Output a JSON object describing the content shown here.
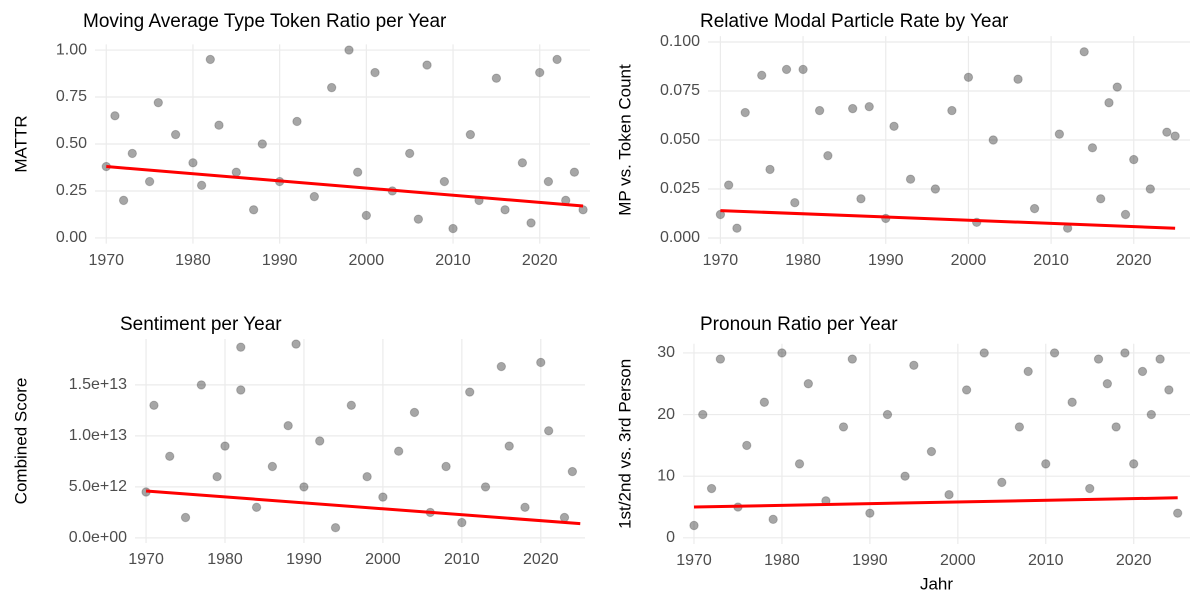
{
  "chart_data": [
    {
      "type": "scatter",
      "title": "Moving Average Type Token Ratio per Year",
      "y_label": "MATTR",
      "xlim": [
        1968.7,
        2025.8
      ],
      "ylim": [
        -0.03,
        1.03
      ],
      "xticks": [
        1970,
        1980,
        1990,
        2000,
        2010,
        2020
      ],
      "yticks": [
        {
          "value": 0,
          "label": "0.00"
        },
        0.25,
        {
          "value": 0.5,
          "label": "0.50"
        },
        0.75,
        {
          "value": 1,
          "label": "1.00"
        }
      ],
      "grid": true,
      "color": "#000000",
      "x": [
        1970,
        1971,
        1972,
        1973,
        1975,
        1976,
        1978,
        1980,
        1981,
        1982,
        1983,
        1985,
        1987,
        1988,
        1990,
        1992,
        1994,
        1996,
        1998,
        1999,
        2000,
        2001,
        2003,
        2005,
        2006,
        2007,
        2009,
        2010,
        2012,
        2013,
        2015,
        2016,
        2018,
        2019,
        2020,
        2021,
        2022,
        2023,
        2024,
        2025
      ],
      "values": [
        0.38,
        0.65,
        0.2,
        0.45,
        0.3,
        0.72,
        0.55,
        0.4,
        0.28,
        0.95,
        0.6,
        0.35,
        0.15,
        0.5,
        0.3,
        0.62,
        0.22,
        0.8,
        1.0,
        0.35,
        0.12,
        0.88,
        0.25,
        0.45,
        0.1,
        0.92,
        0.3,
        0.05,
        0.55,
        0.2,
        0.85,
        0.15,
        0.4,
        0.08,
        0.88,
        0.3,
        0.95,
        0.2,
        0.35,
        0.15
      ],
      "trend": {
        "x": [
          1970,
          2025
        ],
        "values": [
          0.38,
          0.17
        ],
        "color": "#ff0000"
      }
    },
    {
      "type": "scatter",
      "title": "Relative Modal Particle Rate by Year",
      "y_label": "MP vs. Token Count",
      "xlim": [
        1968.5,
        2026.8
      ],
      "ylim": [
        -0.003,
        0.103
      ],
      "xticks": [
        1970,
        1980,
        1990,
        2000,
        2010,
        2020
      ],
      "yticks": [
        {
          "value": 0,
          "label": "0.000"
        },
        0.025,
        {
          "value": 0.05,
          "label": "0.050"
        },
        0.075,
        {
          "value": 0.1,
          "label": "0.100"
        }
      ],
      "grid": true,
      "color": "#000000",
      "x": [
        1970,
        1971,
        1972,
        1973,
        1975,
        1976,
        1978,
        1979,
        1980,
        1982,
        1983,
        1986,
        1987,
        1988,
        1990,
        1991,
        1993,
        1996,
        1998,
        2000,
        2001,
        2003,
        2006,
        2008,
        2011,
        2012,
        2014,
        2015,
        2016,
        2017,
        2018,
        2019,
        2020,
        2022,
        2024,
        2025
      ],
      "values": [
        0.012,
        0.027,
        0.005,
        0.064,
        0.083,
        0.035,
        0.086,
        0.018,
        0.086,
        0.065,
        0.042,
        0.066,
        0.02,
        0.067,
        0.01,
        0.057,
        0.03,
        0.025,
        0.065,
        0.082,
        0.008,
        0.05,
        0.081,
        0.015,
        0.053,
        0.005,
        0.095,
        0.046,
        0.02,
        0.069,
        0.077,
        0.012,
        0.04,
        0.025,
        0.054,
        0.052
      ],
      "trend": {
        "x": [
          1970,
          2025
        ],
        "values": [
          0.014,
          0.005
        ],
        "color": "#ff0000"
      }
    },
    {
      "type": "scatter",
      "title": "Sentiment per Year",
      "y_label": "Combined Score",
      "xlim": [
        1968.6,
        2025.6
      ],
      "ylim": [
        -500000000000,
        19500000000000
      ],
      "xticks": [
        1970,
        1980,
        1990,
        2000,
        2010,
        2020
      ],
      "yticks": [
        {
          "value": 0,
          "label": "0.0e+00"
        },
        {
          "value": 5000000000000,
          "label": "5.0e+12"
        },
        {
          "value": 10000000000000,
          "label": "1.0e+13"
        },
        {
          "value": 15000000000000,
          "label": "1.5e+13"
        }
      ],
      "grid": true,
      "color": "#000000",
      "x": [
        1970,
        1971,
        1973,
        1975,
        1977,
        1979,
        1980,
        1982,
        1982,
        1984,
        1986,
        1988,
        1989,
        1990,
        1992,
        1994,
        1996,
        1998,
        2000,
        2002,
        2004,
        2006,
        2008,
        2010,
        2011,
        2013,
        2015,
        2016,
        2018,
        2020,
        2021,
        2023,
        2024
      ],
      "values": [
        4500000000000,
        13000000000000,
        8000000000000,
        2000000000000,
        15000000000000,
        6000000000000,
        9000000000000,
        18700000000000,
        14500000000000,
        3000000000000,
        7000000000000,
        11000000000000,
        19000000000000,
        5000000000000,
        9500000000000,
        1000000000000,
        13000000000000,
        6000000000000,
        4000000000000,
        8500000000000,
        12300000000000,
        2500000000000,
        7000000000000,
        1500000000000,
        14300000000000,
        5000000000000,
        16800000000000,
        9000000000000,
        3000000000000,
        17200000000000,
        10500000000000,
        2000000000000,
        6500000000000
      ],
      "trend": {
        "x": [
          1970,
          2025
        ],
        "values": [
          4600000000000,
          1400000000000
        ],
        "color": "#ff0000"
      }
    },
    {
      "type": "scatter",
      "title": "Pronoun Ratio per Year",
      "y_label": "1st/2nd vs. 3rd Person",
      "x_label": "Jahr",
      "xlim": [
        1968.75,
        2026.4
      ],
      "ylim": [
        -1,
        31.5
      ],
      "xticks": [
        1970,
        1980,
        1990,
        2000,
        2010,
        2020
      ],
      "yticks": [
        0,
        10,
        20,
        30
      ],
      "grid": true,
      "color": "#000000",
      "x": [
        1970,
        1971,
        1972,
        1973,
        1975,
        1976,
        1978,
        1979,
        1980,
        1982,
        1983,
        1985,
        1987,
        1988,
        1990,
        1992,
        1994,
        1995,
        1997,
        1999,
        2001,
        2003,
        2005,
        2007,
        2008,
        2010,
        2011,
        2013,
        2015,
        2016,
        2017,
        2018,
        2019,
        2020,
        2021,
        2022,
        2023,
        2024,
        2025
      ],
      "values": [
        2,
        20,
        8,
        29,
        5,
        15,
        22,
        3,
        30,
        12,
        25,
        6,
        18,
        29,
        4,
        20,
        10,
        28,
        14,
        7,
        24,
        30,
        9,
        18,
        27,
        12,
        30,
        22,
        8,
        29,
        25,
        18,
        30,
        12,
        27,
        20,
        29,
        24,
        4
      ],
      "trend": {
        "x": [
          1970,
          2025
        ],
        "values": [
          5,
          6.5
        ],
        "color": "#ff0000"
      }
    }
  ]
}
